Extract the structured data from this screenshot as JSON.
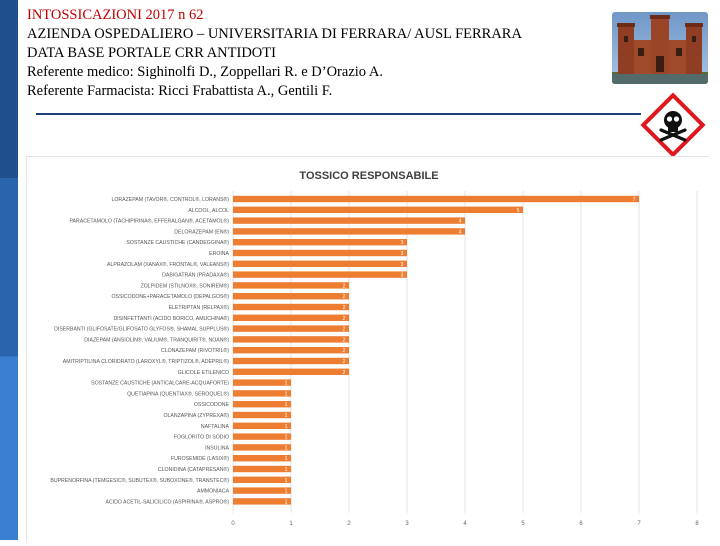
{
  "header": {
    "line1": "INTOSSICAZIONI 2017 n 62",
    "line2": "AZIENDA OSPEDALIERO – UNIVERSITARIA DI FERRARA/ AUSL FERRARA",
    "line3": "DATA BASE PORTALE CRR ANTIDOTI",
    "line4": "Referente medico: Sighinolfi D., Zoppellari R. e D’Orazio A.",
    "line5": "Referente Farmacista: Ricci Frabattista A., Gentili F."
  },
  "images": {
    "castle": "castle-photo",
    "hazard": "toxic-skull-hazard-icon"
  },
  "colors": {
    "bar": "#ed7d31",
    "header_highlight": "#c00000",
    "rule": "#1f3f7a"
  },
  "chart_data": {
    "type": "bar",
    "orientation": "horizontal",
    "title": "TOSSICO RESPONSABILE",
    "xlim": [
      0,
      8
    ],
    "xticks": [
      "0",
      "1",
      "2",
      "3",
      "4",
      "5",
      "6",
      "7",
      "8"
    ],
    "grid": true,
    "legend": "none",
    "categories": [
      "LORAZEPAM (TAVOR®, CONTROL®, LORANS®)",
      "ALCOOL, ALCOL",
      "PARACETAMOLO (TACHIPIRINA®, EFFERALGAN®, ACETAMOL®)",
      "DELORAZEPAM (EN®)",
      "SOSTANZE CAUSTICHE (CANDEGGINA®)",
      "EROINA",
      "ALPRAZOLAM (XANAX®, FRONTAL®, VALEANS®)",
      "DABIGATRAN (PRADAXA®)",
      "ZOLPIDEM (STILNOX®, SONIREM®)",
      "OSSICODONE+PARACETAMOLO (DEPALGOS®)",
      "ELETRIPTAN (RELPAX®)",
      "DISINFETTANTI (ACIDO BORICO, AMUCHINA®)",
      "DISERBANTI (GLIFOSATE/GLIFOSATO GLYFOS®, SHAMAL SUPPLUS®)",
      "DIAZEPAM (ANSIOLIN®, VALIUM®, TRANQUIRIT®, NOAN®)",
      "CLONAZEPAM (RIVOTRIL®)",
      "AMITRIPTILINA CLORIDRATO (LAROXYL®, TRIPTIZOL®, ADEPRIL®)",
      "GLICOLE ETILENICO",
      "SOSTANZE CAUSTICHE (ANTICALCARE-ACQUAFORTE)",
      "QUETIAPINA (QUENTIAX®, SEROQUEL®)",
      "OSSICODONE",
      "OLANZAPINA (ZYPREXA®)",
      "NAFTALINA",
      "FOGLORITO DI SODIO",
      "INSULINA",
      "FUROSEMIDE (LASIX®)",
      "CLONIDINA (CATAPRESAN®)",
      "BUPRENORFINA (TEMGESIC®, SUBUTEX®, SUBOXONE®, TRANSTEC®)",
      "AMMONIACA",
      "ACIDO ACETIL-SALICILICO (ASPIRINA®, ASPRO®)"
    ],
    "values": [
      7,
      5,
      4,
      4,
      3,
      3,
      3,
      3,
      2,
      2,
      2,
      2,
      2,
      2,
      2,
      2,
      2,
      1,
      1,
      1,
      1,
      1,
      1,
      1,
      1,
      1,
      1,
      1,
      1
    ]
  }
}
